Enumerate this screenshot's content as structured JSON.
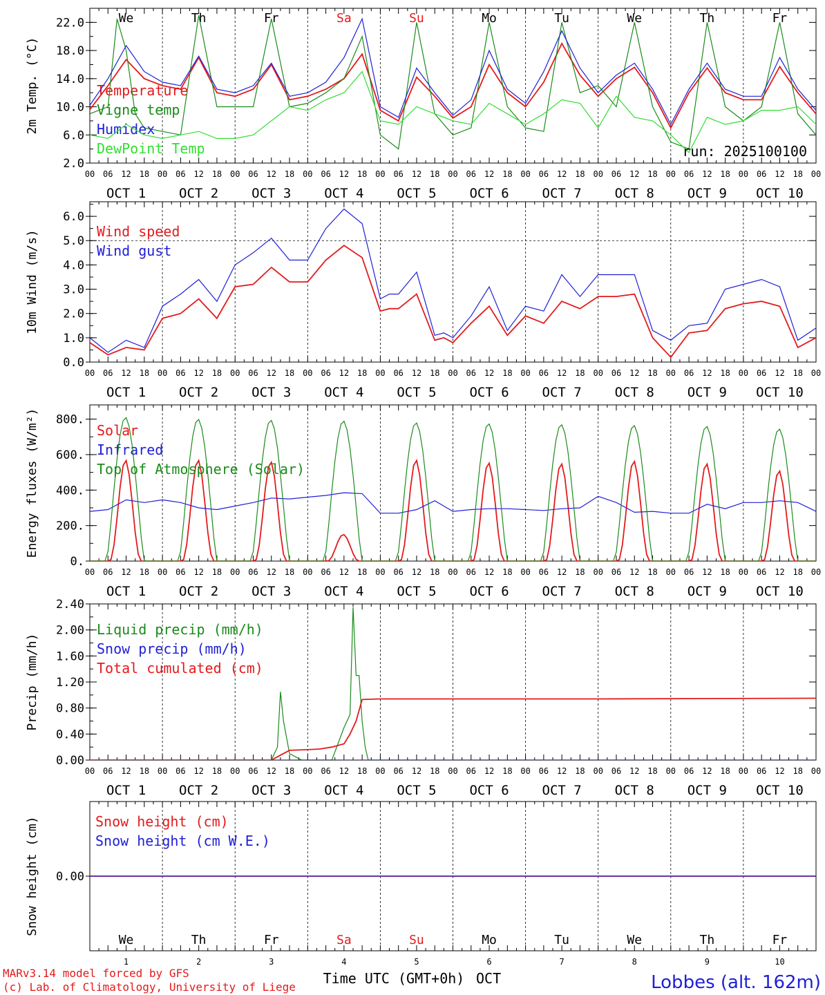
{
  "run_label": "run: 2025100100",
  "station": "Lobbes (alt. 162m)",
  "footer": {
    "line1": "MARv3.14 model forced by GFS",
    "line2": "(c) Lab. of Climatology, University of Liege",
    "xlabel": "Time UTC (GMT+0h)",
    "month": "OCT"
  },
  "colors": {
    "red": "#e31a1c",
    "green": "#1a8a1a",
    "blue": "#1f1fd6",
    "lightgreen": "#33dd33",
    "axis": "#000000"
  },
  "days": [
    {
      "name": "We",
      "date": "1",
      "weekend": false
    },
    {
      "name": "Th",
      "date": "2",
      "weekend": false
    },
    {
      "name": "Fr",
      "date": "3",
      "weekend": false
    },
    {
      "name": "Sa",
      "date": "4",
      "weekend": true
    },
    {
      "name": "Su",
      "date": "5",
      "weekend": true
    },
    {
      "name": "Mo",
      "date": "6",
      "weekend": false
    },
    {
      "name": "Tu",
      "date": "7",
      "weekend": false
    },
    {
      "name": "We",
      "date": "8",
      "weekend": false
    },
    {
      "name": "Th",
      "date": "9",
      "weekend": false
    },
    {
      "name": "Fr",
      "date": "10",
      "weekend": false
    }
  ],
  "hour_ticks": [
    "00",
    "06",
    "12",
    "18"
  ],
  "final_tick": "00",
  "date_prefix": "OCT",
  "chart_data": [
    {
      "type": "line",
      "id": "temp",
      "ylabel": "2m Temp. (°C)",
      "ylim": [
        2,
        24
      ],
      "yticks": [
        2,
        6,
        10,
        14,
        18,
        22
      ],
      "ytick_labels": [
        "2.0",
        "6.0",
        "10.0",
        "14.0",
        "18.0",
        "22.0"
      ],
      "x_unit": "hours since 2025-10-01 00 UTC",
      "series": [
        {
          "name": "Temperature",
          "color": "red",
          "x": [
            0,
            6,
            12,
            18,
            24,
            30,
            36,
            42,
            48,
            54,
            60,
            66,
            72,
            78,
            84,
            90,
            96,
            102,
            108,
            114,
            120,
            126,
            132,
            138,
            144,
            150,
            156,
            162,
            168,
            174,
            180,
            186,
            192,
            198,
            204,
            210,
            216,
            222,
            228,
            234,
            240
          ],
          "y": [
            9.6,
            13,
            16.7,
            14,
            13,
            12.5,
            17,
            12,
            11.5,
            12.5,
            16,
            11,
            11.5,
            12.5,
            14,
            17.5,
            9.5,
            8,
            14.2,
            11.5,
            8.4,
            10,
            16,
            12,
            10,
            13.5,
            19,
            14.5,
            11.5,
            14,
            15.6,
            12,
            7,
            12,
            15.5,
            12,
            11,
            11,
            15.7,
            12,
            9
          ]
        },
        {
          "name": "Vigne temp",
          "color": "green",
          "x": [
            0,
            6,
            9,
            12,
            15,
            18,
            24,
            30,
            36,
            42,
            48,
            54,
            60,
            66,
            72,
            78,
            84,
            90,
            96,
            102,
            108,
            114,
            120,
            126,
            132,
            138,
            144,
            150,
            156,
            162,
            168,
            174,
            180,
            186,
            192,
            198,
            204,
            210,
            216,
            222,
            228,
            234,
            240
          ],
          "y": [
            9,
            10,
            22.5,
            18,
            9,
            7,
            6.5,
            6,
            23,
            10,
            10,
            10,
            22.5,
            10,
            10.5,
            12,
            14,
            20,
            6,
            4,
            22,
            9,
            6,
            7,
            22,
            10,
            7,
            6.5,
            22,
            12,
            13,
            10,
            22,
            10,
            5,
            4,
            22,
            10,
            8,
            10,
            22,
            9,
            6
          ]
        },
        {
          "name": "Humidex",
          "color": "blue",
          "x": [
            0,
            6,
            12,
            18,
            24,
            30,
            36,
            42,
            48,
            54,
            60,
            66,
            72,
            78,
            84,
            90,
            96,
            102,
            108,
            114,
            120,
            126,
            132,
            138,
            144,
            150,
            156,
            162,
            168,
            174,
            180,
            186,
            192,
            198,
            204,
            210,
            216,
            222,
            228,
            234,
            240
          ],
          "y": [
            10.2,
            14,
            18.7,
            15,
            13.5,
            13,
            17.2,
            12.5,
            12,
            13,
            16.2,
            11.5,
            12,
            13.5,
            17,
            22.5,
            10,
            8.5,
            15.5,
            12,
            8.8,
            11,
            18,
            12.5,
            10.5,
            15,
            20.8,
            15.5,
            12,
            14.5,
            16.2,
            12.5,
            7.5,
            12.5,
            16.2,
            12.5,
            11.5,
            11.5,
            17,
            12.5,
            9.5
          ]
        },
        {
          "name": "DewPoint Temp",
          "color": "lightgreen",
          "x": [
            0,
            6,
            12,
            18,
            24,
            30,
            36,
            42,
            48,
            54,
            60,
            66,
            72,
            78,
            84,
            90,
            96,
            102,
            108,
            114,
            120,
            126,
            132,
            138,
            144,
            150,
            156,
            162,
            168,
            174,
            180,
            186,
            192,
            198,
            204,
            210,
            216,
            222,
            228,
            234,
            240
          ],
          "y": [
            6,
            5.5,
            7.5,
            6,
            5.5,
            6,
            6.5,
            5.5,
            5.5,
            6,
            8,
            10,
            9.5,
            11,
            12,
            15,
            8,
            7.5,
            10,
            9,
            8,
            7.5,
            10.5,
            9,
            7.5,
            9,
            11,
            10.5,
            7,
            11.5,
            8.5,
            8,
            6,
            3.5,
            8.5,
            7.5,
            8,
            9.5,
            9.5,
            10,
            7.5
          ]
        }
      ]
    },
    {
      "type": "line",
      "id": "wind",
      "ylabel": "10m Wind (m/s)",
      "ylim": [
        0,
        6.6
      ],
      "yticks": [
        0,
        1,
        2,
        3,
        4,
        5,
        6
      ],
      "ytick_labels": [
        "0.0",
        "1.0",
        "2.0",
        "3.0",
        "4.0",
        "5.0",
        "6.0"
      ],
      "dashed_ref": 5,
      "series": [
        {
          "name": "Wind speed",
          "color": "red",
          "x": [
            0,
            6,
            12,
            18,
            24,
            30,
            36,
            42,
            48,
            54,
            60,
            66,
            72,
            78,
            84,
            90,
            96,
            99,
            102,
            108,
            114,
            117,
            120,
            126,
            132,
            138,
            144,
            150,
            156,
            162,
            168,
            174,
            180,
            186,
            192,
            198,
            204,
            210,
            216,
            222,
            228,
            234,
            240
          ],
          "y": [
            0.8,
            0.3,
            0.6,
            0.5,
            1.8,
            2,
            2.6,
            1.8,
            3.1,
            3.2,
            3.9,
            3.3,
            3.3,
            4.2,
            4.8,
            4.3,
            2.1,
            2.2,
            2.2,
            2.8,
            0.9,
            1,
            0.8,
            1.6,
            2.3,
            1.1,
            1.9,
            1.6,
            2.5,
            2.2,
            2.7,
            2.7,
            2.8,
            1,
            0.2,
            1.2,
            1.3,
            2.2,
            2.4,
            2.5,
            2.3,
            0.6,
            1
          ]
        },
        {
          "name": "Wind gust",
          "color": "blue",
          "x": [
            0,
            6,
            12,
            18,
            24,
            30,
            36,
            42,
            48,
            54,
            60,
            66,
            72,
            78,
            84,
            90,
            96,
            99,
            102,
            108,
            114,
            117,
            120,
            126,
            132,
            138,
            144,
            150,
            156,
            162,
            168,
            174,
            180,
            186,
            192,
            198,
            204,
            210,
            216,
            222,
            228,
            234,
            240
          ],
          "y": [
            1,
            0.4,
            0.9,
            0.6,
            2.3,
            2.8,
            3.4,
            2.5,
            4,
            4.5,
            5.1,
            4.2,
            4.2,
            5.5,
            6.3,
            5.7,
            2.6,
            2.8,
            2.8,
            3.7,
            1.1,
            1.2,
            1,
            1.9,
            3.1,
            1.3,
            2.3,
            2.1,
            3.6,
            2.7,
            3.6,
            3.6,
            3.6,
            1.3,
            0.9,
            1.5,
            1.6,
            3,
            3.2,
            3.4,
            3.1,
            0.9,
            1.4
          ]
        }
      ]
    },
    {
      "type": "line",
      "id": "energy",
      "ylabel": "Energy fluxes (W/m²)",
      "ylim": [
        0,
        880
      ],
      "yticks": [
        0,
        200,
        400,
        600,
        800
      ],
      "ytick_labels": [
        "0.",
        "200.",
        "400.",
        "600.",
        "800."
      ],
      "series": [
        {
          "name": "Solar",
          "color": "red",
          "peaks": [
            570,
            570,
            560,
            150,
            570,
            555,
            550,
            565,
            550,
            510
          ]
        },
        {
          "name": "Infrared",
          "color": "blue",
          "x": [
            0,
            6,
            12,
            18,
            24,
            30,
            36,
            42,
            48,
            54,
            60,
            66,
            72,
            78,
            84,
            90,
            96,
            102,
            108,
            114,
            120,
            126,
            132,
            138,
            144,
            150,
            156,
            162,
            168,
            174,
            180,
            186,
            192,
            198,
            204,
            210,
            216,
            222,
            228,
            234,
            240
          ],
          "y": [
            280,
            290,
            345,
            330,
            345,
            330,
            300,
            290,
            310,
            330,
            355,
            350,
            360,
            370,
            385,
            380,
            270,
            270,
            290,
            340,
            280,
            290,
            295,
            295,
            290,
            285,
            295,
            300,
            365,
            330,
            275,
            280,
            270,
            270,
            320,
            295,
            330,
            330,
            340,
            330,
            280
          ]
        },
        {
          "name": "Top of Atmosphere (Solar)",
          "color": "green",
          "peaks": [
            810,
            800,
            795,
            790,
            780,
            775,
            770,
            765,
            760,
            745
          ]
        }
      ]
    },
    {
      "type": "line",
      "id": "precip",
      "ylabel": "Precip (mm/h)",
      "ylim": [
        0,
        2.4
      ],
      "yticks": [
        0,
        0.4,
        0.8,
        1.2,
        1.6,
        2.0,
        2.4
      ],
      "ytick_labels": [
        "0.00",
        "0.40",
        "0.80",
        "1.20",
        "1.60",
        "2.00",
        "2.40"
      ],
      "series": [
        {
          "name": "Liquid precip (mm/h)",
          "color": "green",
          "x": [
            0,
            60,
            62,
            63,
            64,
            66,
            68,
            70,
            80,
            84,
            86,
            87,
            88,
            89,
            90,
            91,
            92,
            94,
            240
          ],
          "y": [
            0,
            0,
            0.2,
            1.05,
            0.6,
            0.1,
            0.05,
            0,
            0,
            0.5,
            0.7,
            2.35,
            1.3,
            1.3,
            0.6,
            0.2,
            0,
            0,
            0
          ]
        },
        {
          "name": "Snow precip (mm/h)",
          "color": "blue",
          "x": [
            0,
            240
          ],
          "y": [
            0,
            0
          ]
        },
        {
          "name": "Total cumulated (cm)",
          "color": "red",
          "x": [
            0,
            60,
            62,
            64,
            66,
            72,
            76,
            80,
            84,
            86,
            88,
            90,
            96,
            168,
            240
          ],
          "y": [
            0,
            0,
            0.05,
            0.1,
            0.15,
            0.16,
            0.17,
            0.2,
            0.25,
            0.4,
            0.6,
            0.93,
            0.94,
            0.94,
            0.95
          ]
        }
      ]
    },
    {
      "type": "line",
      "id": "snow",
      "ylabel": "Snow height (cm)",
      "ylim": [
        -1,
        1
      ],
      "yticks": [
        0
      ],
      "ytick_labels": [
        "0.00"
      ],
      "series": [
        {
          "name": "Snow height (cm)",
          "color": "red",
          "x": [
            0,
            240
          ],
          "y": [
            0,
            0
          ]
        },
        {
          "name": "Snow height (cm W.E.)",
          "color": "blue",
          "x": [
            0,
            240
          ],
          "y": [
            0,
            0
          ]
        }
      ]
    }
  ]
}
